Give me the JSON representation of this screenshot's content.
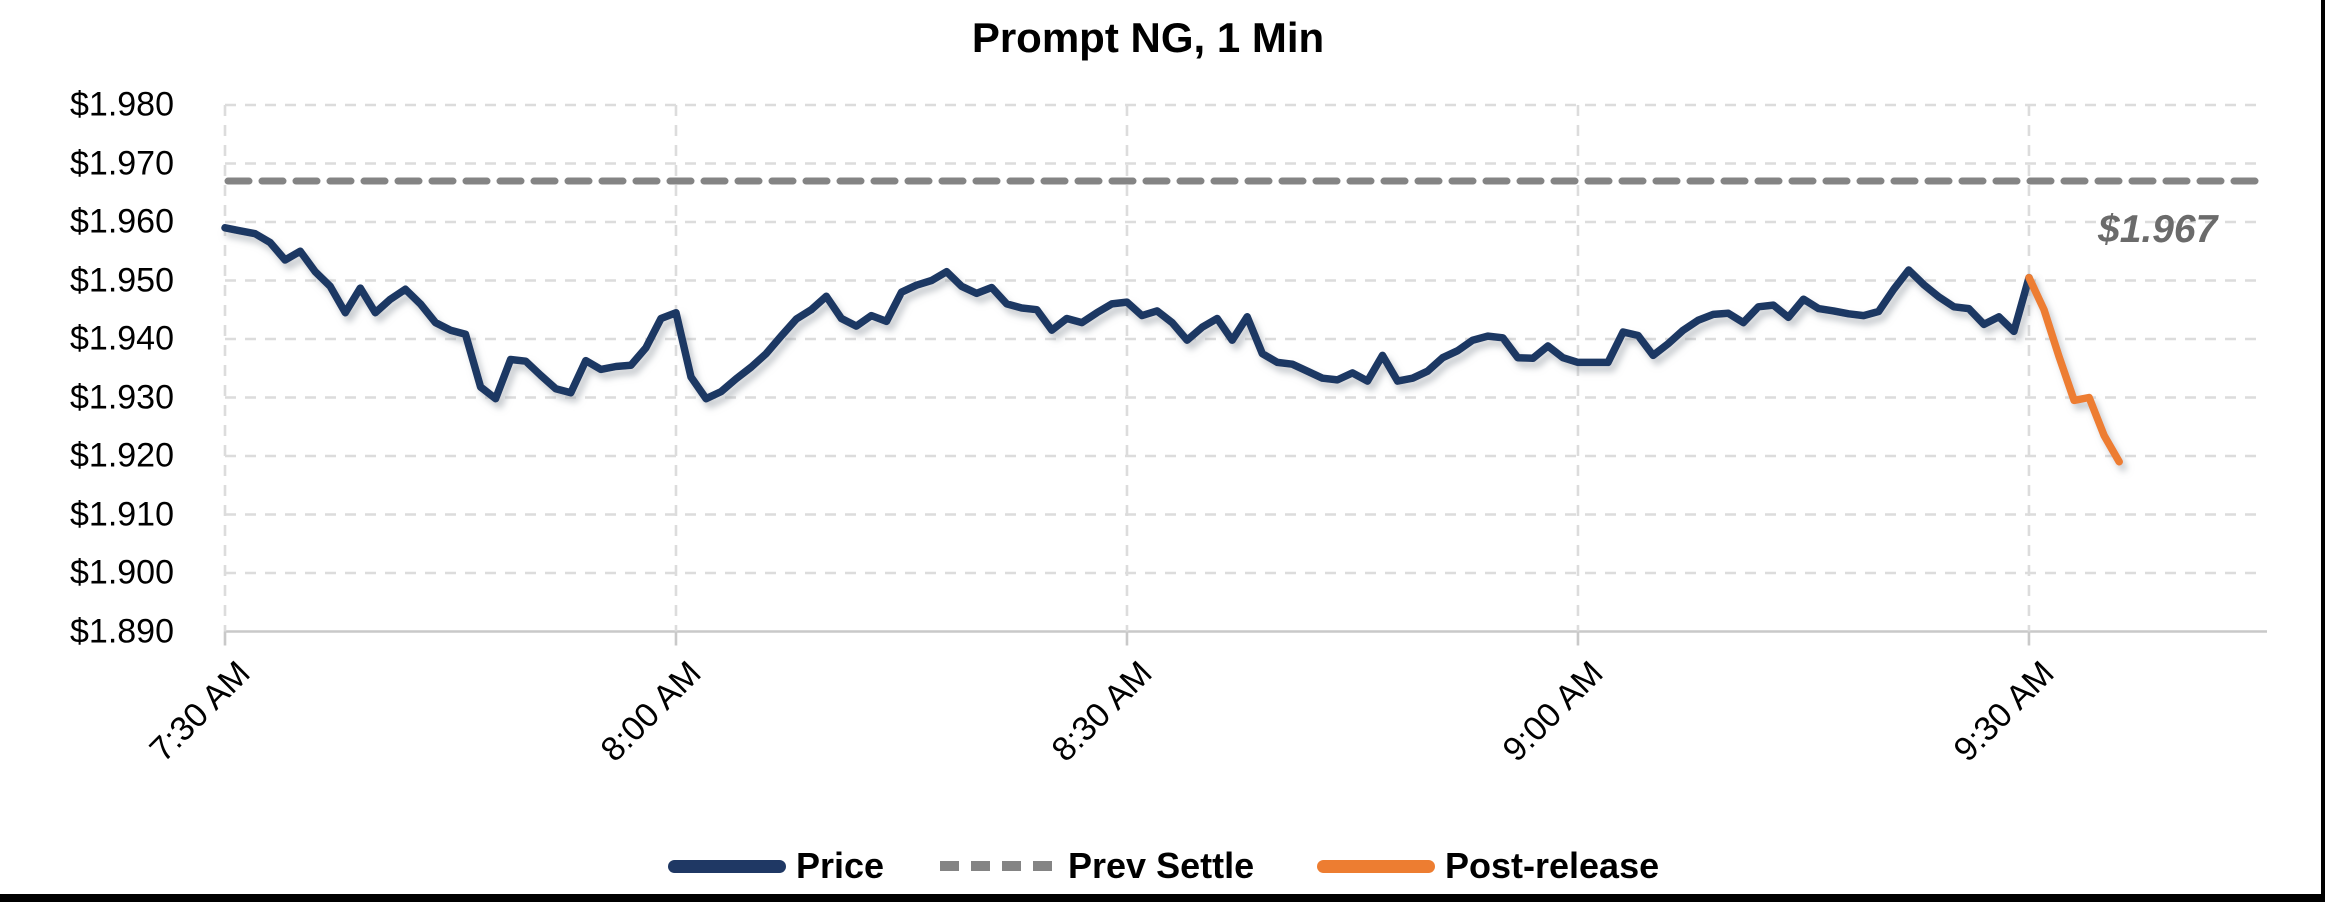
{
  "title": "Prompt NG, 1 Min",
  "annotation": {
    "prev_settle_label": "$1.967"
  },
  "colors": {
    "price": "#1f3864",
    "post_release": "#ed7d31",
    "prev_settle": "#848484",
    "gridline": "#dcdcdc",
    "axis_line": "#c9c9c9",
    "annotation_text": "#6b6b6b",
    "frame": "#000000"
  },
  "legend": [
    {
      "label": "Price",
      "color": "#1f3864",
      "style": "solid"
    },
    {
      "label": "Prev Settle",
      "color": "#848484",
      "style": "dashed"
    },
    {
      "label": "Post-release",
      "color": "#ed7d31",
      "style": "solid"
    }
  ],
  "chart_data": {
    "type": "line",
    "title": "Prompt NG, 1 Min",
    "xlabel": "",
    "ylabel": "",
    "grid": "dashed",
    "legend_position": "bottom",
    "ylim": [
      1.89,
      1.98
    ],
    "y_step": 0.01,
    "y_tick_labels": [
      "$1.980",
      "$1.970",
      "$1.960",
      "$1.950",
      "$1.940",
      "$1.930",
      "$1.920",
      "$1.910",
      "$1.900",
      "$1.890"
    ],
    "x_ticks": [
      {
        "label": "7:30 AM",
        "minute": 0
      },
      {
        "label": "8:00 AM",
        "minute": 30
      },
      {
        "label": "8:30 AM",
        "minute": 60
      },
      {
        "label": "9:00 AM",
        "minute": 90
      },
      {
        "label": "9:30 AM",
        "minute": 120
      }
    ],
    "x_axis_total_minutes": 135.7,
    "prev_settle_value": 1.967,
    "series": [
      {
        "name": "Price",
        "color": "#1f3864",
        "start_minute": 0,
        "interval_minutes": 1,
        "values": [
          1.959,
          1.9585,
          1.958,
          1.9565,
          1.9535,
          1.955,
          1.9515,
          1.949,
          1.9445,
          1.9487,
          1.9445,
          1.9468,
          1.9485,
          1.946,
          1.9428,
          1.9415,
          1.9408,
          1.9318,
          1.9298,
          1.9365,
          1.9362,
          1.9338,
          1.9315,
          1.9308,
          1.9363,
          1.9348,
          1.9353,
          1.9355,
          1.9385,
          1.9435,
          1.9445,
          1.9335,
          1.9298,
          1.931,
          1.9332,
          1.9352,
          1.9375,
          1.9405,
          1.9434,
          1.945,
          1.9473,
          1.9435,
          1.9422,
          1.944,
          1.943,
          1.948,
          1.9492,
          1.95,
          1.9515,
          1.949,
          1.9478,
          1.9488,
          1.946,
          1.9453,
          1.945,
          1.9415,
          1.9435,
          1.9428,
          1.9445,
          1.946,
          1.9463,
          1.944,
          1.9448,
          1.9428,
          1.9398,
          1.942,
          1.9435,
          1.9398,
          1.9438,
          1.9375,
          1.936,
          1.9357,
          1.9345,
          1.9333,
          1.933,
          1.9342,
          1.9328,
          1.9372,
          1.9328,
          1.9333,
          1.9345,
          1.9368,
          1.938,
          1.9398,
          1.9405,
          1.9402,
          1.9368,
          1.9367,
          1.9388,
          1.9368,
          1.936,
          1.936,
          1.936,
          1.9412,
          1.9406,
          1.9372,
          1.9392,
          1.9415,
          1.9432,
          1.9442,
          1.9444,
          1.9428,
          1.9455,
          1.9458,
          1.9437,
          1.9468,
          1.9452,
          1.9448,
          1.9443,
          1.944,
          1.9447,
          1.9485,
          1.9518,
          1.9493,
          1.9472,
          1.9455,
          1.9452,
          1.9425,
          1.9438,
          1.9413,
          1.9505
        ]
      },
      {
        "name": "Prev Settle",
        "color": "#848484",
        "dashed": true,
        "constant_value": 1.967
      },
      {
        "name": "Post-release",
        "color": "#ed7d31",
        "start_minute": 120,
        "interval_minutes": 1,
        "values": [
          1.9505,
          1.945,
          1.937,
          1.9295,
          1.93,
          1.9235,
          1.919
        ]
      }
    ]
  }
}
